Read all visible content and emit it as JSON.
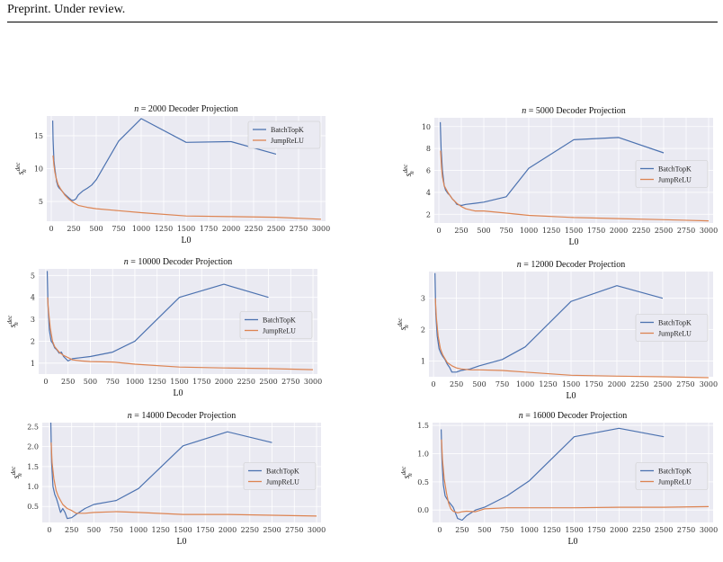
{
  "header": {
    "text": "Preprint. Under review."
  },
  "colors": {
    "batchtopk": "#4c72b0",
    "jumprelu": "#dd8452",
    "plot_bg": "#eaeaf2",
    "grid": "#ffffff"
  },
  "chart_data": [
    {
      "type": "line",
      "n": "2000",
      "title_rest": " Decoder Projection",
      "xlabel": "L0",
      "ylabel": "s_n^dec",
      "xlim": [
        -50,
        3050
      ],
      "ylim": [
        2,
        18
      ],
      "xticks": [
        0,
        250,
        500,
        750,
        1000,
        1250,
        1500,
        1750,
        2000,
        2250,
        2500,
        2750,
        3000
      ],
      "yticks": [
        5,
        10,
        15
      ],
      "legend": "top-right",
      "series": [
        {
          "name": "BatchTopK",
          "x": [
            16,
            20,
            25,
            30,
            40,
            50,
            60,
            75,
            90,
            100,
            125,
            150,
            175,
            200,
            225,
            250,
            275,
            300,
            350,
            400,
            450,
            500,
            750,
            1000,
            1500,
            2000,
            2500
          ],
          "y": [
            17.3,
            14.5,
            12.8,
            11.2,
            10.0,
            9.0,
            8.0,
            7.3,
            7.0,
            6.9,
            6.5,
            6.1,
            5.8,
            5.5,
            5.2,
            5.2,
            5.4,
            6.0,
            6.6,
            7.0,
            7.5,
            8.3,
            14.2,
            17.6,
            14.0,
            14.1,
            12.2
          ]
        },
        {
          "name": "JumpReLU",
          "x": [
            20,
            30,
            40,
            50,
            75,
            100,
            150,
            200,
            250,
            300,
            400,
            500,
            750,
            1000,
            1500,
            2000,
            2500,
            3000
          ],
          "y": [
            12.0,
            10.5,
            9.5,
            8.8,
            7.6,
            7.0,
            6.0,
            5.3,
            4.8,
            4.4,
            4.1,
            3.9,
            3.6,
            3.3,
            2.8,
            2.7,
            2.6,
            2.3
          ]
        }
      ]
    },
    {
      "type": "line",
      "n": "5000",
      "title_rest": " Decoder Projection",
      "xlabel": "L0",
      "ylabel": "s_n^dec",
      "xlim": [
        -50,
        3050
      ],
      "ylim": [
        1.2,
        10.8
      ],
      "xticks": [
        0,
        250,
        500,
        750,
        1000,
        1250,
        1500,
        1750,
        2000,
        2250,
        2500,
        2750,
        3000
      ],
      "yticks": [
        2,
        4,
        6,
        8,
        10
      ],
      "legend": "center-right",
      "series": [
        {
          "name": "BatchTopK",
          "x": [
            16,
            25,
            40,
            60,
            75,
            100,
            125,
            150,
            175,
            200,
            250,
            300,
            400,
            500,
            750,
            1000,
            1500,
            2000,
            2500
          ],
          "y": [
            10.4,
            8.0,
            6.0,
            4.6,
            4.2,
            3.9,
            3.7,
            3.4,
            3.2,
            2.9,
            2.8,
            2.9,
            3.0,
            3.1,
            3.6,
            6.2,
            8.8,
            9.0,
            7.6
          ]
        },
        {
          "name": "JumpReLU",
          "x": [
            20,
            30,
            40,
            60,
            100,
            150,
            200,
            250,
            300,
            400,
            500,
            750,
            1000,
            1500,
            2000,
            2500,
            3000
          ],
          "y": [
            7.8,
            6.3,
            5.4,
            4.6,
            4.0,
            3.4,
            3.0,
            2.7,
            2.5,
            2.3,
            2.3,
            2.1,
            1.9,
            1.7,
            1.6,
            1.5,
            1.4
          ]
        }
      ]
    },
    {
      "type": "line",
      "n": "10000",
      "title_rest": " Decoder Projection",
      "xlabel": "L0",
      "ylabel": "s_n^dec",
      "xlim": [
        -80,
        3050
      ],
      "ylim": [
        0.5,
        5.3
      ],
      "xticks": [
        0,
        250,
        500,
        750,
        1000,
        1250,
        1500,
        1750,
        2000,
        2250,
        2500,
        2750,
        3000
      ],
      "yticks": [
        1,
        2,
        3,
        4,
        5
      ],
      "legend": "center-right",
      "series": [
        {
          "name": "BatchTopK",
          "x": [
            16,
            25,
            40,
            60,
            80,
            100,
            125,
            150,
            175,
            200,
            250,
            300,
            400,
            500,
            750,
            1000,
            1500,
            2000,
            2500
          ],
          "y": [
            5.2,
            3.6,
            2.5,
            2.0,
            1.9,
            1.7,
            1.6,
            1.45,
            1.5,
            1.3,
            1.1,
            1.2,
            1.25,
            1.3,
            1.5,
            2.0,
            4.0,
            4.6,
            4.0
          ]
        },
        {
          "name": "JumpReLU",
          "x": [
            20,
            30,
            50,
            75,
            100,
            150,
            200,
            250,
            300,
            400,
            500,
            750,
            1000,
            1500,
            2000,
            2500,
            3000
          ],
          "y": [
            4.0,
            3.4,
            2.6,
            2.0,
            1.75,
            1.5,
            1.35,
            1.25,
            1.15,
            1.1,
            1.07,
            1.05,
            0.95,
            0.82,
            0.78,
            0.75,
            0.7
          ]
        }
      ]
    },
    {
      "type": "line",
      "n": "12000",
      "title_rest": " Decoder Projection",
      "xlabel": "L0",
      "ylabel": "s_n^dec",
      "xlim": [
        -50,
        3050
      ],
      "ylim": [
        0.5,
        3.85
      ],
      "xticks": [
        0,
        250,
        500,
        750,
        1000,
        1250,
        1500,
        1750,
        2000,
        2250,
        2500,
        2750,
        3000
      ],
      "yticks": [
        1,
        2,
        3
      ],
      "legend": "center-right",
      "series": [
        {
          "name": "BatchTopK",
          "x": [
            16,
            25,
            40,
            60,
            80,
            100,
            125,
            150,
            175,
            200,
            250,
            300,
            400,
            500,
            750,
            1000,
            1500,
            2000,
            2500
          ],
          "y": [
            3.8,
            2.5,
            1.8,
            1.4,
            1.25,
            1.15,
            1.05,
            0.9,
            0.8,
            0.65,
            0.65,
            0.7,
            0.75,
            0.85,
            1.05,
            1.45,
            2.9,
            3.4,
            3.0
          ]
        },
        {
          "name": "JumpReLU",
          "x": [
            20,
            30,
            50,
            75,
            100,
            150,
            200,
            250,
            300,
            400,
            500,
            750,
            1000,
            1500,
            2000,
            2500,
            3000
          ],
          "y": [
            3.0,
            2.4,
            1.8,
            1.4,
            1.2,
            0.95,
            0.85,
            0.78,
            0.75,
            0.72,
            0.72,
            0.7,
            0.65,
            0.55,
            0.52,
            0.5,
            0.47
          ]
        }
      ]
    },
    {
      "type": "line",
      "n": "14000",
      "title_rest": " Decoder Projection",
      "xlabel": "L0",
      "ylabel": "s_n^dec",
      "xlim": [
        -80,
        3050
      ],
      "ylim": [
        0.1,
        2.6
      ],
      "xticks": [
        0,
        250,
        500,
        750,
        1000,
        1250,
        1500,
        1750,
        2000,
        2250,
        2500,
        2750,
        3000
      ],
      "yticks": [
        0.5,
        1.0,
        1.5,
        2.0,
        2.5
      ],
      "legend": "center-right",
      "series": [
        {
          "name": "BatchTopK",
          "x": [
            16,
            25,
            40,
            60,
            80,
            100,
            125,
            150,
            175,
            200,
            250,
            300,
            400,
            500,
            750,
            1000,
            1500,
            2000,
            2500
          ],
          "y": [
            2.6,
            1.6,
            1.0,
            0.8,
            0.7,
            0.55,
            0.35,
            0.45,
            0.35,
            0.2,
            0.22,
            0.3,
            0.45,
            0.55,
            0.65,
            0.95,
            2.02,
            2.37,
            2.1
          ]
        },
        {
          "name": "JumpReLU",
          "x": [
            20,
            30,
            50,
            75,
            100,
            150,
            200,
            250,
            300,
            400,
            500,
            750,
            1000,
            1500,
            2000,
            2500,
            3000
          ],
          "y": [
            2.1,
            1.6,
            1.2,
            0.9,
            0.75,
            0.55,
            0.45,
            0.4,
            0.33,
            0.33,
            0.35,
            0.37,
            0.35,
            0.3,
            0.3,
            0.28,
            0.26
          ]
        }
      ]
    },
    {
      "type": "line",
      "n": "16000",
      "title_rest": " Decoder Projection",
      "xlabel": "L0",
      "ylabel": "s_n^dec",
      "xlim": [
        -80,
        3050
      ],
      "ylim": [
        -0.22,
        1.55
      ],
      "xticks": [
        0,
        250,
        500,
        750,
        1000,
        1250,
        1500,
        1750,
        2000,
        2250,
        2500,
        2750,
        3000
      ],
      "yticks": [
        0.0,
        0.5,
        1.0,
        1.5
      ],
      "legend": "center-right",
      "series": [
        {
          "name": "BatchTopK",
          "x": [
            16,
            25,
            40,
            60,
            80,
            100,
            125,
            150,
            175,
            200,
            250,
            300,
            400,
            500,
            750,
            1000,
            1500,
            2000,
            2500
          ],
          "y": [
            1.43,
            0.9,
            0.45,
            0.25,
            0.2,
            0.15,
            0.1,
            0.05,
            -0.05,
            -0.15,
            -0.18,
            -0.1,
            0.0,
            0.05,
            0.25,
            0.52,
            1.3,
            1.45,
            1.3
          ]
        },
        {
          "name": "JumpReLU",
          "x": [
            20,
            30,
            50,
            75,
            100,
            125,
            150,
            200,
            250,
            300,
            400,
            500,
            750,
            1000,
            1500,
            2000,
            2500,
            3000
          ],
          "y": [
            1.25,
            0.9,
            0.55,
            0.3,
            0.12,
            0.02,
            -0.02,
            -0.05,
            -0.03,
            -0.02,
            -0.03,
            0.02,
            0.04,
            0.04,
            0.04,
            0.05,
            0.05,
            0.06
          ]
        }
      ]
    }
  ]
}
